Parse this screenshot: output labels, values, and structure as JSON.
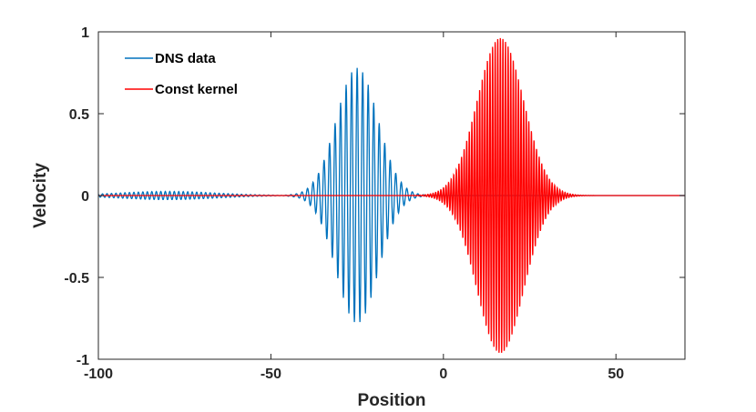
{
  "chart_data": {
    "type": "line",
    "title": "",
    "xlabel": "Position",
    "ylabel": "Velocity",
    "xlim": [
      -100,
      70
    ],
    "ylim": [
      -1,
      1
    ],
    "xticks": [
      -100,
      -50,
      0,
      50
    ],
    "xtick_labels": [
      "-100",
      "-50",
      "0",
      "50"
    ],
    "yticks": [
      -1,
      -0.5,
      0,
      0.5,
      1
    ],
    "ytick_labels": [
      "-1",
      "-0.5",
      "0",
      "0.5",
      "1"
    ],
    "grid": false,
    "legend_position": "top-left",
    "series": [
      {
        "name": "DNS data",
        "color": "#0072BD",
        "model": "wave packet",
        "center": -25,
        "amplitude": 0.78,
        "width": 8.5,
        "wavelength": 1.6,
        "background_noise": {
          "center": -80,
          "amplitude": 0.025,
          "width": 20
        }
      },
      {
        "name": "Const kernel",
        "color": "#FF0000",
        "model": "wave packet",
        "center": 16.5,
        "amplitude": 0.97,
        "width": 9.5,
        "wavelength": 0.75
      }
    ]
  }
}
